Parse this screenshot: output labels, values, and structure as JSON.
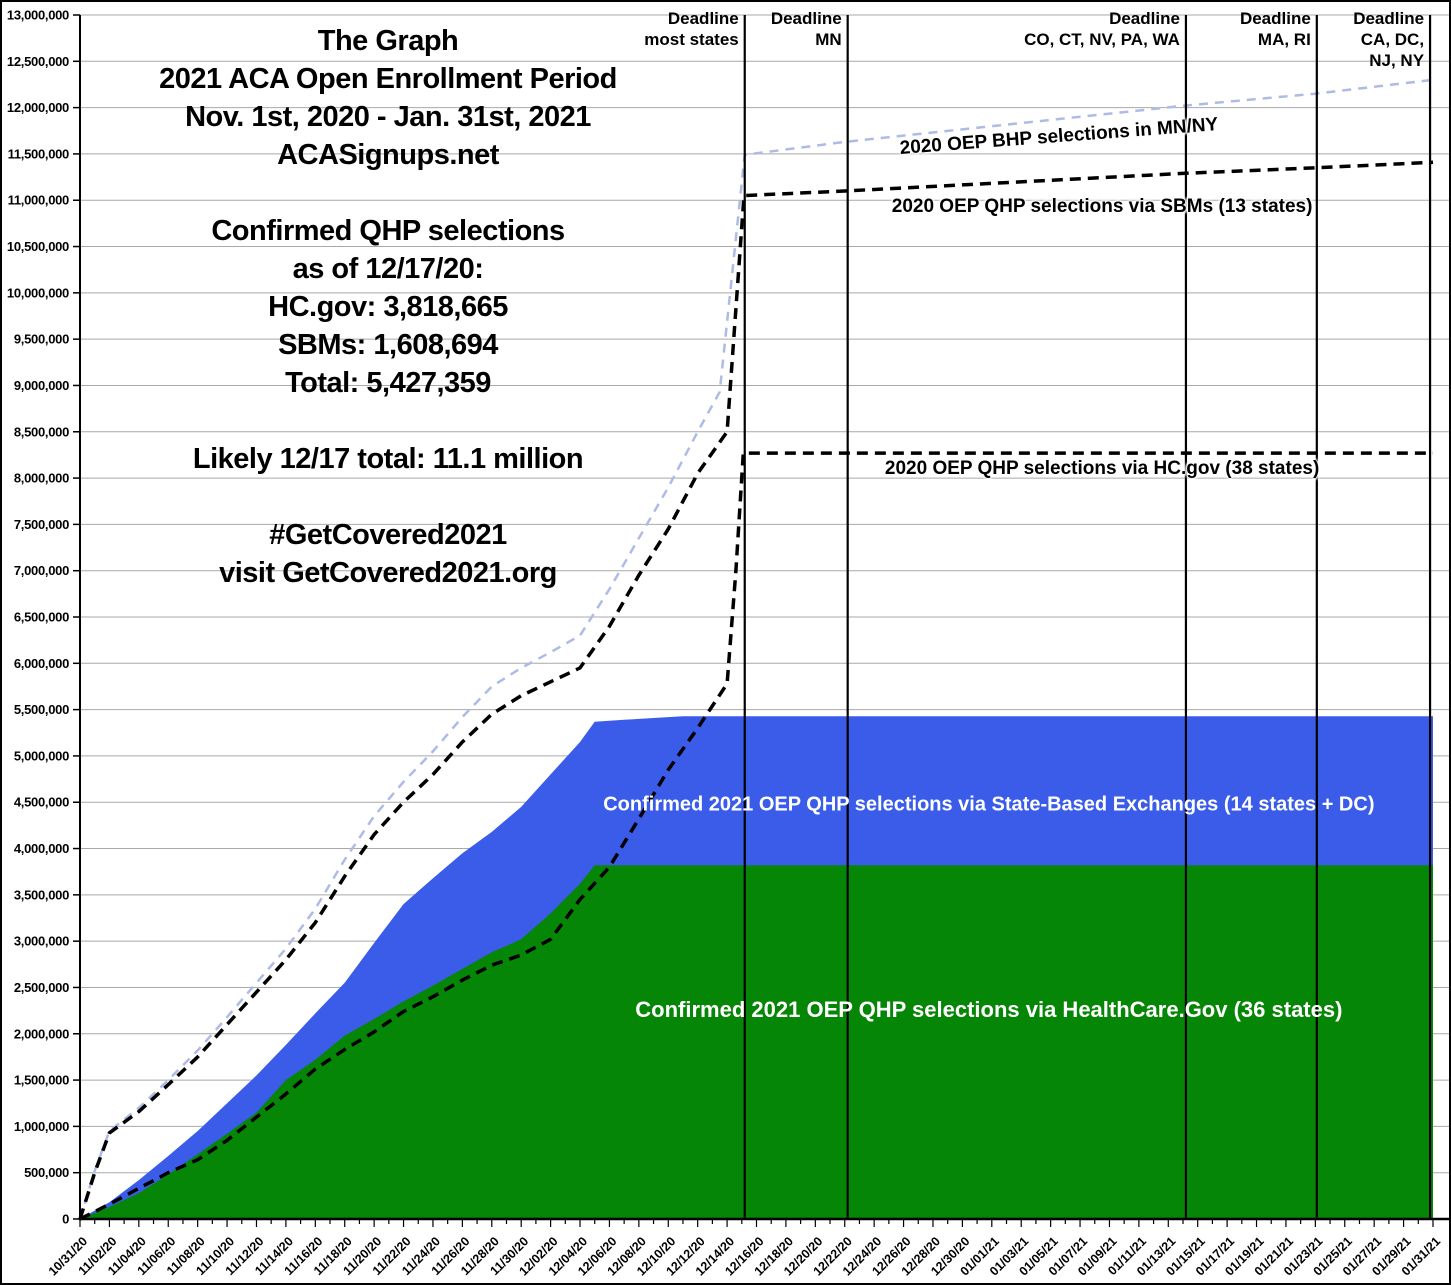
{
  "header_lines": [
    "The Graph",
    "2021 ACA Open Enrollment Period",
    "Nov. 1st, 2020 - Jan. 31st, 2021",
    "ACASignups.net",
    "",
    "Confirmed QHP selections",
    "as of 12/17/20:",
    "HC.gov: 3,818,665",
    "SBMs: 1,608,694",
    "Total: 5,427,359",
    "",
    "Likely 12/17 total: 11.1 million",
    "",
    "#GetCovered2021",
    "visit GetCovered2021.org"
  ],
  "chart_data": {
    "type": "area",
    "title": "The Graph — 2021 ACA Open Enrollment Period (Nov. 1st, 2020 - Jan. 31st, 2021)",
    "source": "ACASignups.net",
    "grid": true,
    "colors": {
      "hcgov_area": "#068606",
      "sbm_area": "#3A5CE8",
      "bhp_line": "#AEBBE6",
      "dashed_2020": "#000000",
      "gridline": "#A9A9A9",
      "axis": "#000000"
    },
    "y_axis": {
      "min": 0,
      "max": 13000000,
      "step": 500000
    },
    "x_axis": {
      "days": 92,
      "label_every_days": 2,
      "labels": [
        "10/31/20",
        "11/02/20",
        "11/04/20",
        "11/06/20",
        "11/08/20",
        "11/10/20",
        "11/12/20",
        "11/14/20",
        "11/16/20",
        "11/18/20",
        "11/20/20",
        "11/22/20",
        "11/24/20",
        "11/26/20",
        "11/28/20",
        "11/30/20",
        "12/02/20",
        "12/04/20",
        "12/06/20",
        "12/08/20",
        "12/10/20",
        "12/12/20",
        "12/14/20",
        "12/16/20",
        "12/18/20",
        "12/20/20",
        "12/22/20",
        "12/24/20",
        "12/26/20",
        "12/28/20",
        "12/30/20",
        "01/01/21",
        "01/03/21",
        "01/05/21",
        "01/07/21",
        "01/09/21",
        "01/11/21",
        "01/13/21",
        "01/15/21",
        "01/17/21",
        "01/19/21",
        "01/21/21",
        "01/23/21",
        "01/25/21",
        "01/27/21",
        "01/29/21",
        "01/31/21"
      ]
    },
    "deadlines": [
      {
        "day": 45.2,
        "lines": [
          "Deadline",
          "most states"
        ]
      },
      {
        "day": 52.2,
        "lines": [
          "Deadline",
          "MN"
        ]
      },
      {
        "day": 75.2,
        "lines": [
          "Deadline",
          "CO, CT, NV, PA, WA"
        ]
      },
      {
        "day": 84.1,
        "lines": [
          "Deadline",
          "MA, RI"
        ]
      },
      {
        "day": 91.8,
        "lines": [
          "Deadline",
          "CA, DC,",
          "NJ, NY"
        ]
      }
    ],
    "series": [
      {
        "name": "confirmed-2021-total-via-sbm",
        "label": "Confirmed 2021 OEP QHP selections via State-Based Exchanges (14 states + DC)",
        "kind": "area",
        "color": "#3A5CE8",
        "final_value": 5427359,
        "points": [
          [
            0,
            0
          ],
          [
            2,
            180000
          ],
          [
            4,
            420000
          ],
          [
            6,
            680000
          ],
          [
            8,
            950000
          ],
          [
            10,
            1250000
          ],
          [
            12,
            1550000
          ],
          [
            14,
            1880000
          ],
          [
            16,
            2220000
          ],
          [
            18,
            2550000
          ],
          [
            20,
            2980000
          ],
          [
            22,
            3400000
          ],
          [
            24,
            3680000
          ],
          [
            26,
            3950000
          ],
          [
            28,
            4180000
          ],
          [
            30,
            4450000
          ],
          [
            32,
            4800000
          ],
          [
            34,
            5150000
          ],
          [
            35,
            5370000
          ],
          [
            37,
            5390000
          ],
          [
            39,
            5410000
          ],
          [
            41,
            5427359
          ],
          [
            92,
            5427359
          ]
        ]
      },
      {
        "name": "confirmed-2021-hcgov",
        "label": "Confirmed 2021 OEP QHP selections via HealthCare.Gov (36 states)",
        "kind": "area",
        "color": "#068606",
        "final_value": 3818665,
        "points": [
          [
            0,
            0
          ],
          [
            2,
            130000
          ],
          [
            4,
            280000
          ],
          [
            6,
            480000
          ],
          [
            8,
            700000
          ],
          [
            10,
            920000
          ],
          [
            12,
            1150000
          ],
          [
            14,
            1500000
          ],
          [
            16,
            1720000
          ],
          [
            18,
            1980000
          ],
          [
            20,
            2160000
          ],
          [
            22,
            2350000
          ],
          [
            24,
            2520000
          ],
          [
            26,
            2700000
          ],
          [
            28,
            2880000
          ],
          [
            30,
            3020000
          ],
          [
            32,
            3300000
          ],
          [
            34,
            3620000
          ],
          [
            35,
            3818665
          ],
          [
            92,
            3818665
          ]
        ]
      },
      {
        "name": "2020-oep-bhp-mn-ny",
        "label": "2020 OEP BHP selections in MN/NY",
        "kind": "dashed-line",
        "color": "#AEBBE6",
        "width": 2.5,
        "dash": "9 7",
        "points": [
          [
            0,
            0
          ],
          [
            1,
            520000
          ],
          [
            2,
            950000
          ],
          [
            4,
            1200000
          ],
          [
            6,
            1500000
          ],
          [
            8,
            1820000
          ],
          [
            10,
            2180000
          ],
          [
            12,
            2550000
          ],
          [
            14,
            2920000
          ],
          [
            16,
            3350000
          ],
          [
            18,
            3880000
          ],
          [
            20,
            4350000
          ],
          [
            22,
            4720000
          ],
          [
            24,
            5050000
          ],
          [
            26,
            5420000
          ],
          [
            28,
            5750000
          ],
          [
            30,
            5950000
          ],
          [
            32,
            6120000
          ],
          [
            34,
            6300000
          ],
          [
            36,
            6800000
          ],
          [
            38,
            7350000
          ],
          [
            40,
            7900000
          ],
          [
            42,
            8500000
          ],
          [
            43.5,
            8930000
          ],
          [
            45.2,
            11490000
          ],
          [
            52,
            11630000
          ],
          [
            75,
            12020000
          ],
          [
            84,
            12150000
          ],
          [
            92,
            12300000
          ]
        ]
      },
      {
        "name": "2020-oep-qhp-sbms",
        "label": "2020 OEP QHP selections via SBMs (13 states)",
        "kind": "dashed-line",
        "color": "#000000",
        "width": 3.5,
        "dash": "11 7",
        "points": [
          [
            0,
            0
          ],
          [
            1,
            500000
          ],
          [
            2,
            930000
          ],
          [
            4,
            1160000
          ],
          [
            6,
            1450000
          ],
          [
            8,
            1750000
          ],
          [
            10,
            2100000
          ],
          [
            12,
            2450000
          ],
          [
            14,
            2800000
          ],
          [
            16,
            3200000
          ],
          [
            18,
            3700000
          ],
          [
            20,
            4150000
          ],
          [
            22,
            4500000
          ],
          [
            24,
            4800000
          ],
          [
            26,
            5150000
          ],
          [
            28,
            5450000
          ],
          [
            30,
            5650000
          ],
          [
            32,
            5800000
          ],
          [
            34,
            5950000
          ],
          [
            36,
            6400000
          ],
          [
            38,
            6950000
          ],
          [
            40,
            7450000
          ],
          [
            42,
            8050000
          ],
          [
            44,
            8500000
          ],
          [
            45.15,
            11050000
          ],
          [
            52,
            11100000
          ],
          [
            75,
            11290000
          ],
          [
            84,
            11350000
          ],
          [
            92,
            11410000
          ]
        ]
      },
      {
        "name": "2020-oep-qhp-hcgov",
        "label": "2020 OEP QHP selections via HC.gov (38 states)",
        "kind": "dashed-line",
        "color": "#000000",
        "width": 3.5,
        "dash": "11 7",
        "points": [
          [
            0,
            0
          ],
          [
            2,
            160000
          ],
          [
            4,
            330000
          ],
          [
            6,
            500000
          ],
          [
            8,
            640000
          ],
          [
            10,
            850000
          ],
          [
            12,
            1100000
          ],
          [
            14,
            1350000
          ],
          [
            16,
            1620000
          ],
          [
            18,
            1830000
          ],
          [
            20,
            2020000
          ],
          [
            22,
            2240000
          ],
          [
            24,
            2400000
          ],
          [
            26,
            2580000
          ],
          [
            28,
            2740000
          ],
          [
            30,
            2850000
          ],
          [
            32,
            3020000
          ],
          [
            34,
            3450000
          ],
          [
            36,
            3800000
          ],
          [
            38,
            4320000
          ],
          [
            40,
            4850000
          ],
          [
            42,
            5300000
          ],
          [
            44,
            5780000
          ],
          [
            44.6,
            7000000
          ],
          [
            45.1,
            8270000
          ],
          [
            92,
            8270000
          ]
        ]
      }
    ],
    "annotations": [
      {
        "id": "bhp-line-label",
        "text": "2020 OEP BHP selections in MN/NY",
        "day": 66.6,
        "value": 11680000,
        "color": "#000000",
        "size": 19,
        "rotate": -4.3,
        "halo": true
      },
      {
        "id": "sbm-line-label",
        "text": "2020 OEP QHP selections via SBMs (13 states)",
        "day": 69.5,
        "value": 10930000,
        "color": "#000000",
        "size": 19,
        "rotate": 0,
        "halo": true
      },
      {
        "id": "hcgov-line-label",
        "text": "2020 OEP QHP selections via HC.gov (38 states)",
        "day": 69.5,
        "value": 8100000,
        "color": "#000000",
        "size": 19,
        "rotate": 0,
        "halo": true
      },
      {
        "id": "sbm-area-label",
        "text": "Confirmed 2021 OEP QHP selections via State-Based Exchanges (14 states + DC)",
        "day": 61.8,
        "value": 4470000,
        "color": "#ffffff",
        "size": 20,
        "rotate": 0,
        "halo": false
      },
      {
        "id": "hcgov-area-label",
        "text": "Confirmed 2021 OEP QHP selections via HealthCare.Gov (36 states)",
        "day": 61.8,
        "value": 2260000,
        "color": "#ffffff",
        "size": 22,
        "rotate": 0,
        "halo": false
      }
    ]
  }
}
